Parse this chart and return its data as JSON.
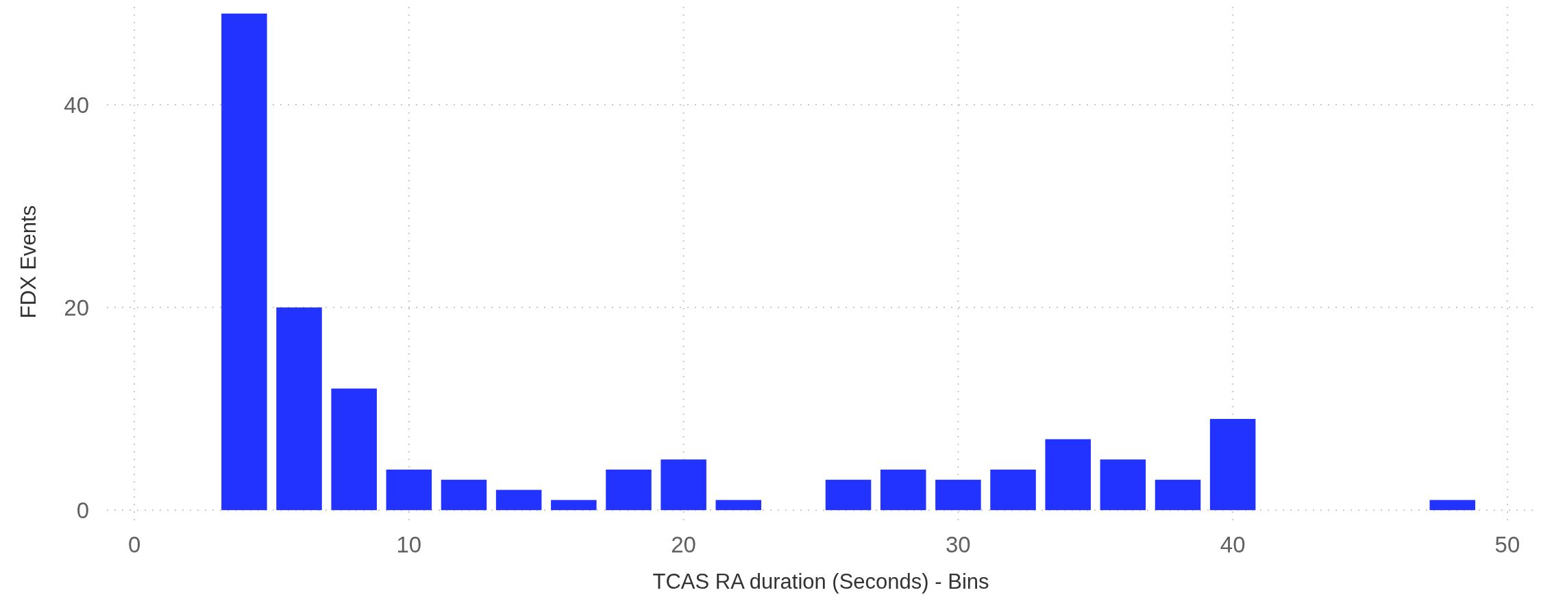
{
  "chart_data": {
    "type": "bar",
    "xlabel": "TCAS RA duration (Seconds) - Bins",
    "ylabel": "FDX Events",
    "x": [
      4,
      6,
      8,
      10,
      12,
      14,
      16,
      18,
      20,
      22,
      26,
      28,
      30,
      32,
      34,
      36,
      38,
      40,
      48
    ],
    "values": [
      49,
      20,
      12,
      4,
      3,
      2,
      1,
      4,
      5,
      1,
      3,
      4,
      3,
      4,
      7,
      5,
      3,
      9,
      1
    ],
    "color": "#2233ff",
    "xlim": [
      -1,
      51
    ],
    "xticks": [
      0,
      10,
      20,
      30,
      40,
      50
    ],
    "ylim": [
      -1,
      50
    ],
    "yticks": [
      0,
      20,
      40
    ],
    "grid": true
  }
}
